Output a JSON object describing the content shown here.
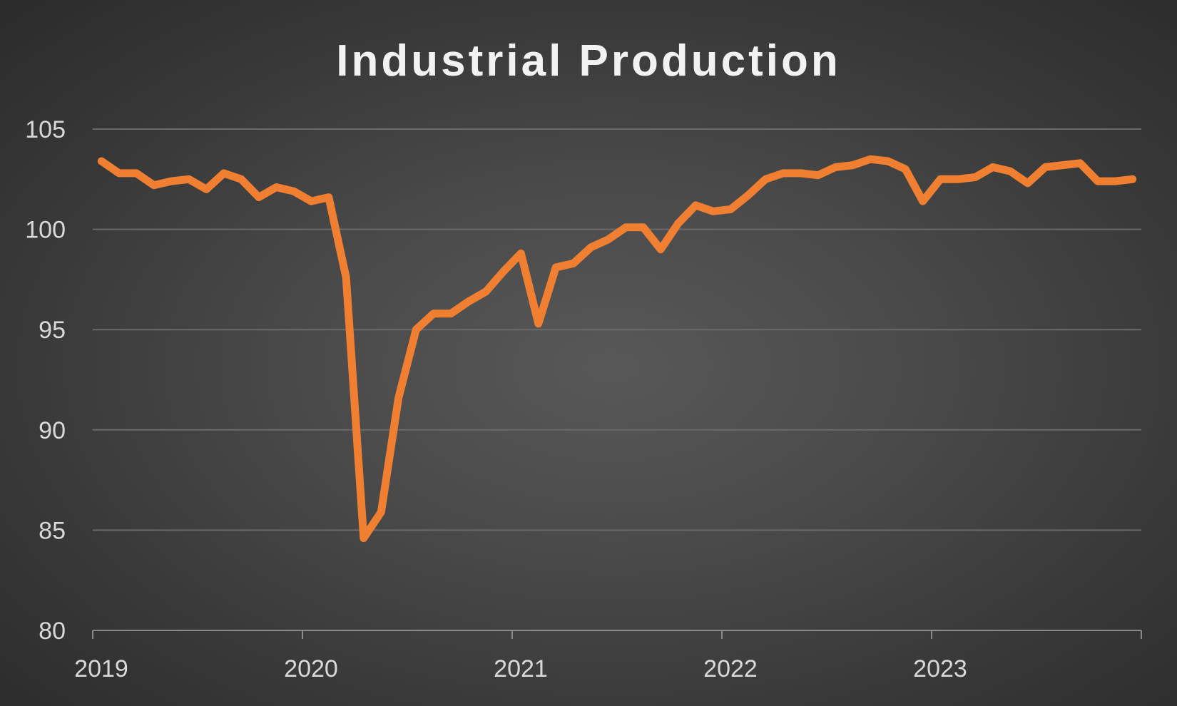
{
  "chart_data": {
    "type": "line",
    "title": "Industrial Production",
    "xlabel": "",
    "ylabel": "",
    "ylim": [
      80,
      105
    ],
    "yticks": [
      80,
      85,
      90,
      95,
      100,
      105
    ],
    "x_tick_labels": [
      "2019",
      "2020",
      "2021",
      "2022",
      "2023"
    ],
    "x_start_year": 2019,
    "x_end_year": 2024,
    "grid": true,
    "legend": "none",
    "colors": {
      "series": "#f07f32",
      "grid": "#6a6a6a",
      "text": "#d9d9d9",
      "title": "#f2f2f2"
    },
    "series": [
      {
        "values": [
          103.4,
          102.8,
          102.8,
          102.2,
          102.4,
          102.5,
          102.0,
          102.8,
          102.5,
          101.6,
          102.1,
          101.9,
          101.4,
          101.6,
          97.6,
          84.6,
          85.9,
          91.6,
          95.0,
          95.8,
          95.8,
          96.4,
          96.9,
          97.9,
          98.8,
          95.3,
          98.1,
          98.3,
          99.1,
          99.5,
          100.1,
          100.1,
          99.0,
          100.3,
          101.2,
          100.9,
          101.0,
          101.7,
          102.5,
          102.8,
          102.8,
          102.7,
          103.1,
          103.2,
          103.5,
          103.4,
          103.0,
          101.4,
          102.5,
          102.5,
          102.6,
          103.1,
          102.9,
          102.3,
          103.1,
          103.2,
          103.3,
          102.4,
          102.4,
          102.5
        ]
      }
    ]
  }
}
